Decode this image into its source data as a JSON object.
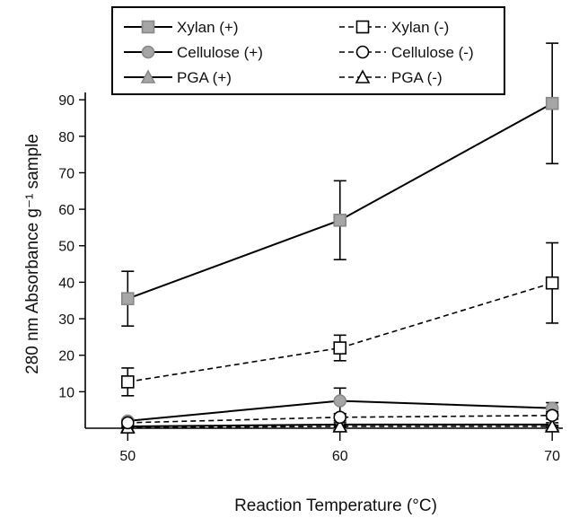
{
  "chart_data": {
    "type": "line",
    "xlabel": "Reaction Temperature (°C)",
    "ylabel": "280 nm Absorbance g⁻¹ sample",
    "x": [
      50,
      60,
      70
    ],
    "xticks": [
      "50",
      "60",
      "70"
    ],
    "yticks": [
      "10",
      "20",
      "30",
      "40",
      "50",
      "60",
      "70",
      "80",
      "90"
    ],
    "xlim": [
      48,
      70.5
    ],
    "ylim": [
      0,
      92
    ],
    "legend_position": "top",
    "series": [
      {
        "name": "Xylan (+)",
        "values": [
          35.5,
          57,
          89
        ],
        "errors": [
          7.5,
          10.8,
          16.5
        ],
        "line": "solid",
        "marker": "filled-square",
        "color": "#a6a6a6"
      },
      {
        "name": "Xylan (-)",
        "values": [
          12.7,
          22,
          39.8
        ],
        "errors": [
          3.8,
          3.5,
          11
        ],
        "line": "dashed",
        "marker": "open-square",
        "color": "#000000"
      },
      {
        "name": "Cellulose (+)",
        "values": [
          2,
          7.5,
          5.5
        ],
        "errors": [
          0.5,
          3.5,
          1.5
        ],
        "line": "solid",
        "marker": "filled-circle",
        "color": "#a6a6a6"
      },
      {
        "name": "Cellulose (-)",
        "values": [
          1.5,
          3,
          3.5
        ],
        "errors": [
          0.4,
          1,
          1
        ],
        "line": "dashed",
        "marker": "open-circle",
        "color": "#000000"
      },
      {
        "name": "PGA (+)",
        "values": [
          0.5,
          1,
          1
        ],
        "errors": [
          0.3,
          0.5,
          0.5
        ],
        "line": "solid",
        "marker": "filled-triangle",
        "color": "#a6a6a6"
      },
      {
        "name": "PGA (-)",
        "values": [
          0.2,
          0.5,
          0.5
        ],
        "errors": [
          0.2,
          0.3,
          0.3
        ],
        "line": "dashed",
        "marker": "open-triangle",
        "color": "#000000"
      }
    ]
  }
}
